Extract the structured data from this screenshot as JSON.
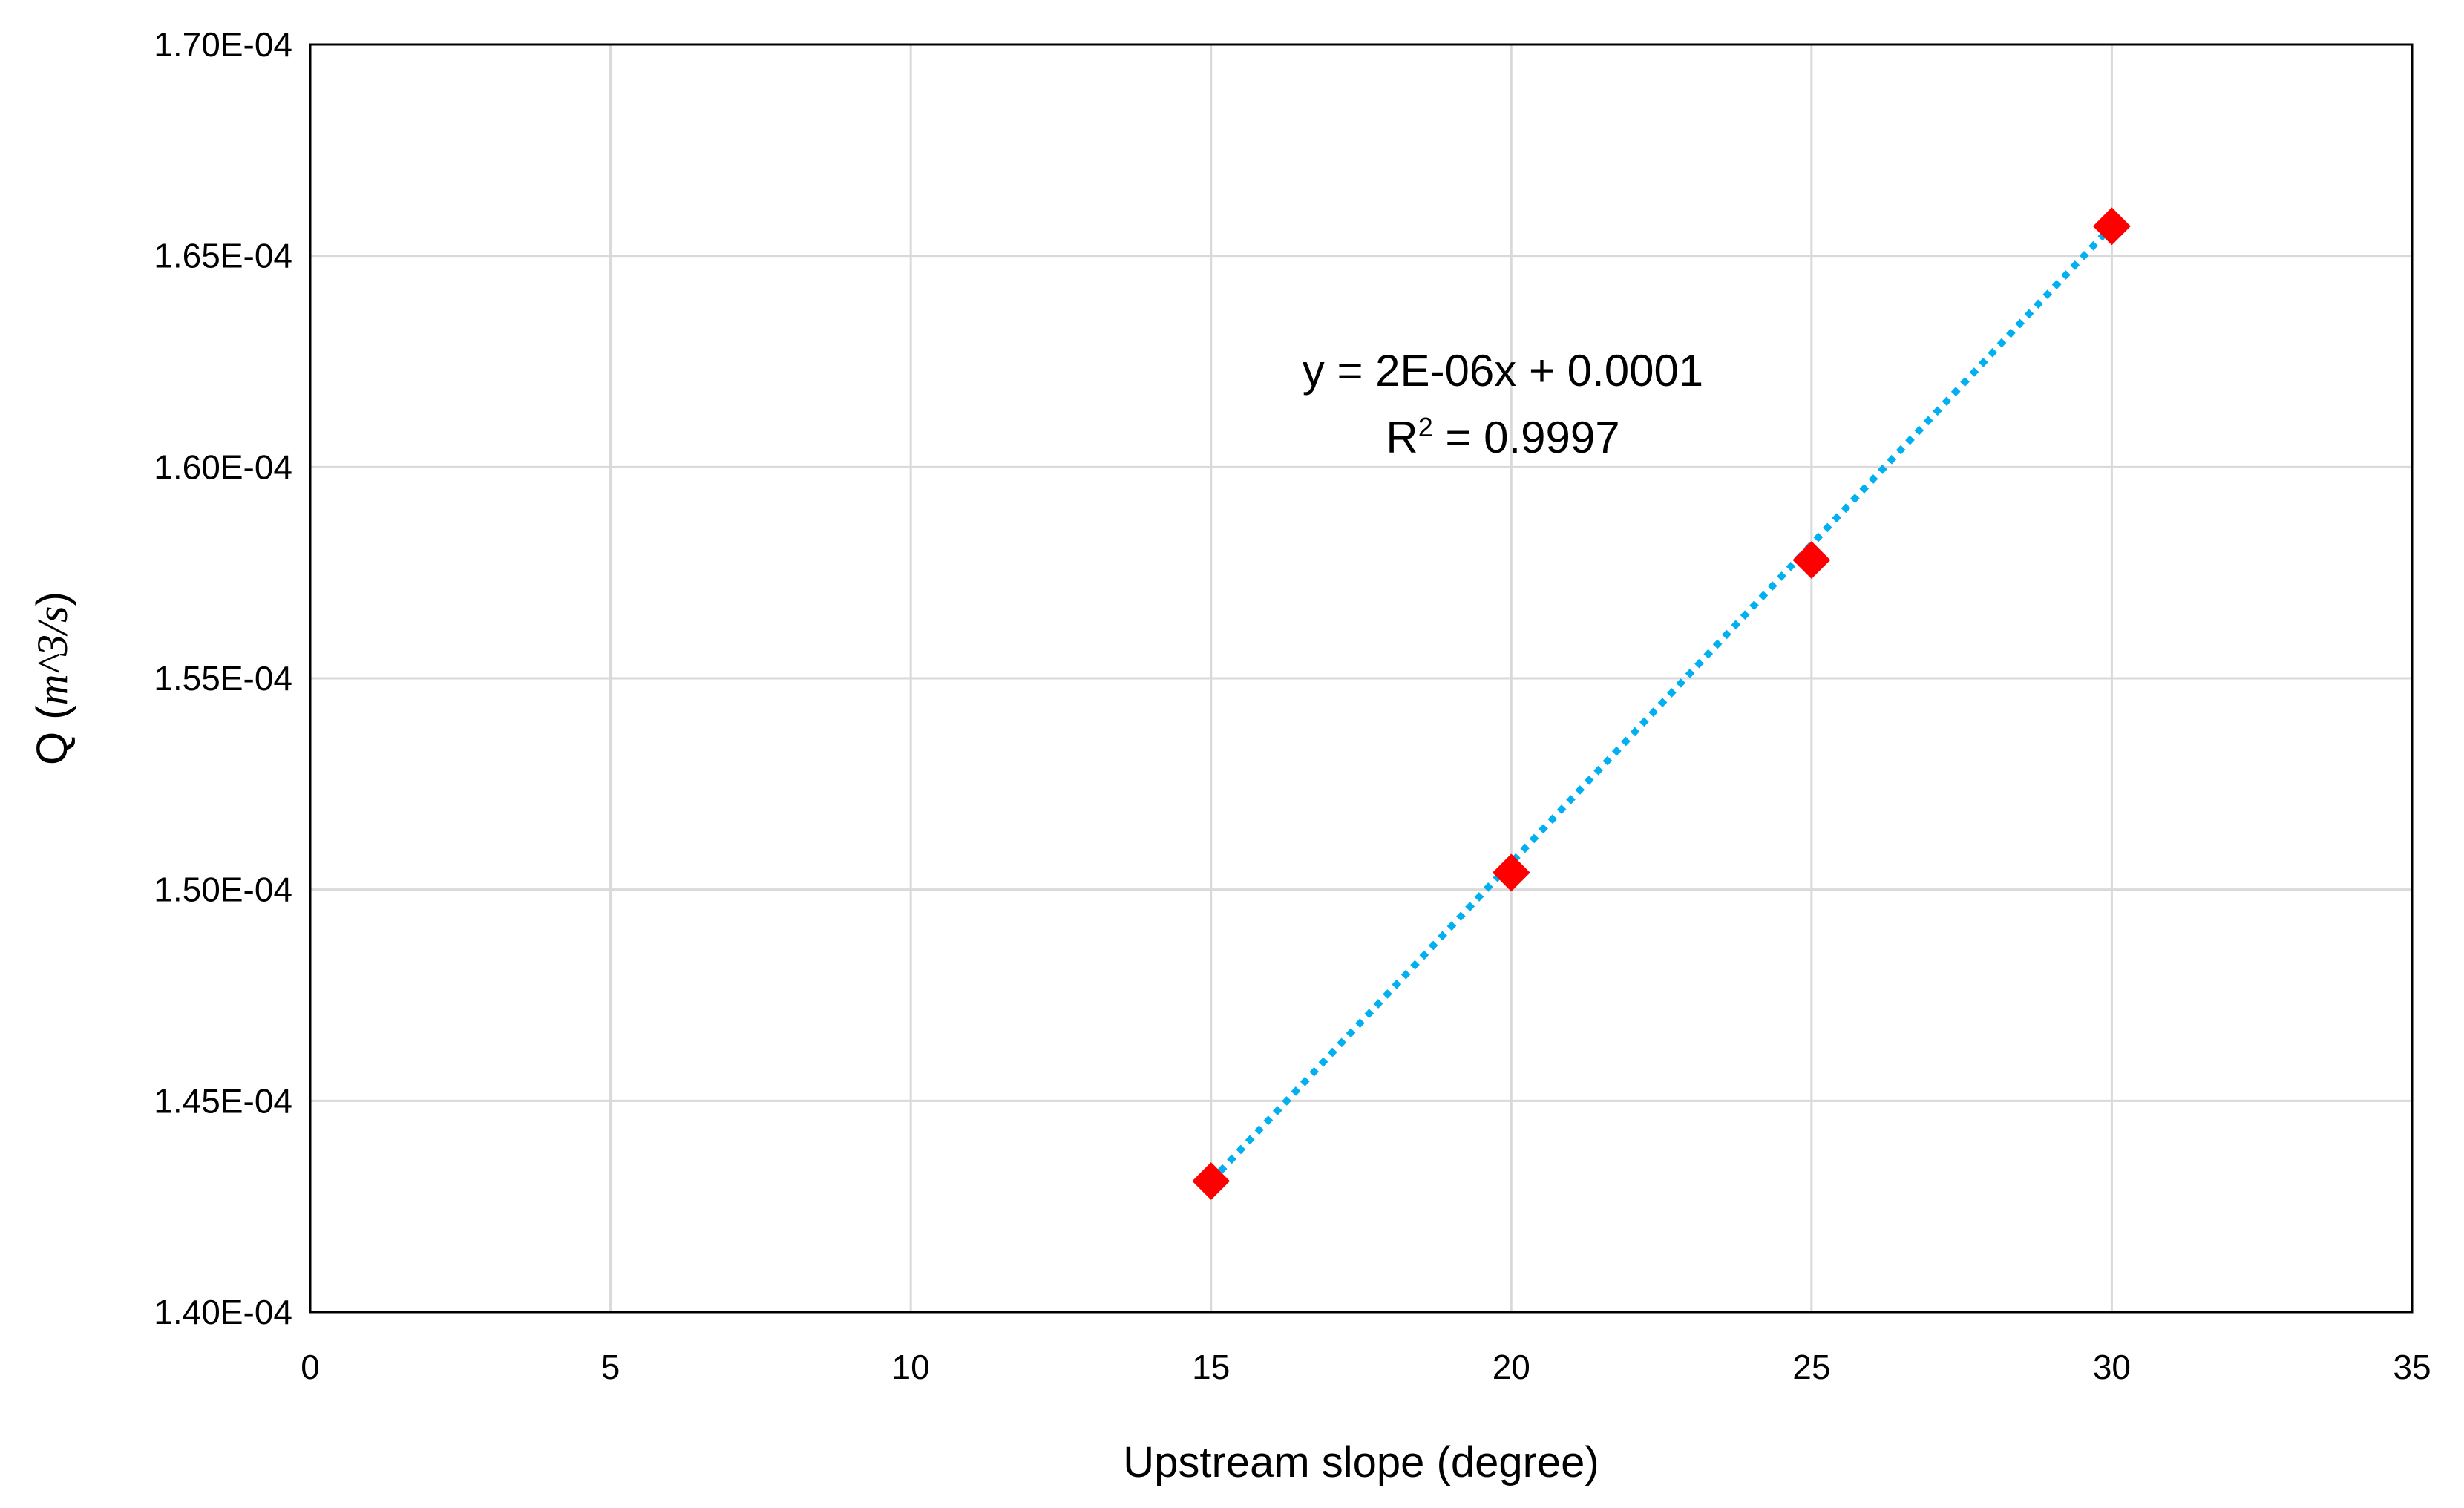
{
  "chart_data": {
    "type": "scatter",
    "xlabel": "Upstream slope (degree)",
    "ylabel_prefix": "Q (",
    "ylabel_unit": "m^3/s",
    "ylabel_suffix": ")",
    "xlim": [
      0,
      35
    ],
    "ylim": [
      0.00014,
      0.00017
    ],
    "x_ticks": [
      0,
      5,
      10,
      15,
      20,
      25,
      30,
      35
    ],
    "x_tick_labels": [
      "0",
      "5",
      "10",
      "15",
      "20",
      "25",
      "30",
      "35"
    ],
    "y_ticks": [
      0.00014,
      0.000145,
      0.00015,
      0.000155,
      0.00016,
      0.000165,
      0.00017
    ],
    "y_tick_labels": [
      "1.40E-04",
      "1.45E-04",
      "1.50E-04",
      "1.55E-04",
      "1.60E-04",
      "1.65E-04",
      "1.70E-04"
    ],
    "grid": true,
    "series": [
      {
        "x": [
          15,
          20,
          25,
          30
        ],
        "y": [
          0.0001431,
          0.0001504,
          0.0001578,
          0.0001657
        ],
        "color": "#ff0000",
        "marker": "diamond"
      }
    ],
    "trendline": {
      "type": "linear",
      "x": [
        15,
        30
      ],
      "y": [
        0.0001431,
        0.0001657
      ],
      "color": "#00b0f0",
      "style": "dotted"
    },
    "annotation": {
      "equation": "y = 2E-06x + 0.0001",
      "r2_prefix": "R",
      "r2_sup": "2",
      "r2_suffix": " = 0.9997"
    },
    "colors": {
      "grid": "#d9d9d9",
      "frame": "#000000"
    }
  }
}
